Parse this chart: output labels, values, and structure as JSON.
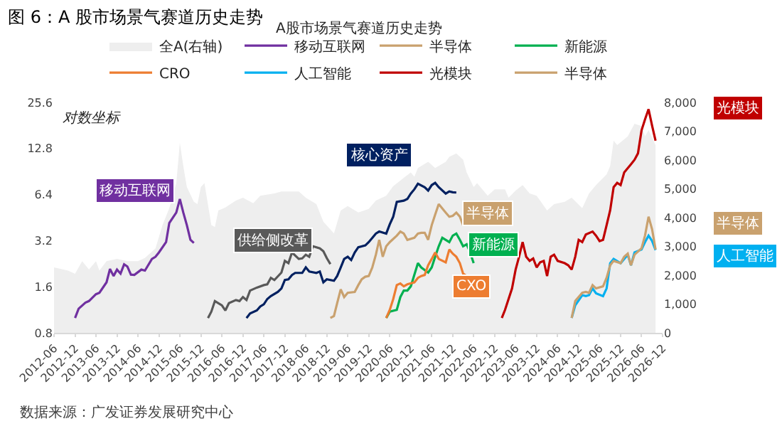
{
  "chart_data": {
    "type": "line",
    "title": "图 6：A 股市场景气赛道历史走势",
    "subtitle": "A股市场景气赛道历史走势",
    "annotations": [
      "对数坐标",
      "移动互联网",
      "供给侧改革",
      "核心资产",
      "半导体",
      "新能源",
      "CXO",
      "光模块",
      "半导体",
      "人工智能",
      "数据来源：广发证券发展研究中心"
    ],
    "legend": "top",
    "log": "y",
    "xlim": [
      "2012-06",
      "2026-12"
    ],
    "xticks": [
      "2012-06",
      "2012-12",
      "2013-06",
      "2013-12",
      "2014-06",
      "2014-12",
      "2015-06",
      "2015-12",
      "2016-06",
      "2016-12",
      "2017-06",
      "2017-12",
      "2018-06",
      "2018-12",
      "2019-06",
      "2019-12",
      "2020-06",
      "2020-12",
      "2021-06",
      "2021-12",
      "2022-06",
      "2022-12",
      "2023-06",
      "2023-12",
      "2024-06",
      "2024-12",
      "2025-06",
      "2025-12",
      "2026-06",
      "2026-12"
    ],
    "ylim": [
      0.8,
      25.6
    ],
    "yticks": [
      0.8,
      1.6,
      3.2,
      6.4,
      12.8,
      25.6
    ],
    "y2lim": [
      0,
      8000
    ],
    "y2ticks": [
      0,
      {
        "value": 1000,
        "label": "1,000"
      },
      {
        "value": 2000,
        "label": "2,000"
      },
      {
        "value": 3000,
        "label": "3,000"
      },
      {
        "value": 4000,
        "label": "4,000"
      },
      {
        "value": 5000,
        "label": "5,000"
      },
      {
        "value": 6000,
        "label": "6,000"
      },
      {
        "value": 7000,
        "label": "7,000"
      },
      {
        "value": 8000,
        "label": "8,000"
      }
    ],
    "series": [
      {
        "name": "全A(右轴)",
        "type": "area",
        "axis": "y2",
        "color": "#eeeeee",
        "x": [
          "2012-06",
          "2012-10",
          "2012-12",
          "2013-02",
          "2013-04",
          "2013-06",
          "2013-07",
          "2013-09",
          "2013-12",
          "2014-03",
          "2014-06",
          "2014-08",
          "2014-11",
          "2015-01",
          "2015-03",
          "2015-05",
          "2015-06",
          "2015-07",
          "2015-08",
          "2015-10",
          "2015-11",
          "2015-12",
          "2016-01",
          "2016-03",
          "2016-04",
          "2016-05",
          "2016-07",
          "2016-10",
          "2016-12",
          "2017-03",
          "2017-05",
          "2017-09",
          "2017-11",
          "2018-01",
          "2018-04",
          "2018-06",
          "2018-09",
          "2018-11",
          "2019-02",
          "2019-04",
          "2019-06",
          "2019-09",
          "2019-12",
          "2020-02",
          "2020-05",
          "2020-07",
          "2020-10",
          "2020-12",
          "2021-01",
          "2021-02",
          "2021-05",
          "2021-07",
          "2021-10",
          "2021-11",
          "2022-01",
          "2022-03",
          "2022-04",
          "2022-06",
          "2022-07",
          "2022-10",
          "2022-12",
          "2023-03",
          "2023-04",
          "2023-06",
          "2023-08",
          "2023-10",
          "2023-12",
          "2024-03",
          "2024-05",
          "2024-08",
          "2024-10",
          "2025-01",
          "2025-03",
          "2025-05",
          "2025-08",
          "2025-09",
          "2025-10",
          "2025-11",
          "2026-02",
          "2026-04",
          "2026-06",
          "2026-07",
          "2026-08",
          "2026-10"
        ],
        "values": [
          2270,
          2160,
          2050,
          2490,
          2200,
          2490,
          2160,
          2490,
          2570,
          2490,
          2490,
          2600,
          2930,
          3740,
          4330,
          5200,
          6600,
          5790,
          5060,
          4550,
          4470,
          5060,
          5200,
          3740,
          3670,
          4250,
          4350,
          4590,
          4690,
          4500,
          4760,
          4840,
          4910,
          4910,
          4910,
          4690,
          4470,
          3860,
          3450,
          4250,
          4400,
          4180,
          4300,
          4590,
          4760,
          5090,
          5380,
          5570,
          5420,
          5720,
          5940,
          5720,
          5940,
          6110,
          6230,
          6010,
          5570,
          5060,
          5200,
          4760,
          4980,
          4980,
          4690,
          4940,
          5130,
          4840,
          4760,
          4250,
          4470,
          4550,
          4690,
          4330,
          4840,
          5130,
          5500,
          5790,
          6670,
          6520,
          6820,
          7260,
          7180,
          6820,
          7040,
          6520
        ]
      },
      {
        "name": "移动互联网",
        "color": "#7030a0",
        "x": [
          "2012-12",
          "2013-01",
          "2013-03",
          "2013-04",
          "2013-06",
          "2013-07",
          "2013-09",
          "2013-10",
          "2013-11",
          "2013-12",
          "2014-01",
          "2014-02",
          "2014-03",
          "2014-04",
          "2014-05",
          "2014-07",
          "2014-08",
          "2014-10",
          "2014-11",
          "2014-12",
          "2015-02",
          "2015-03",
          "2015-05",
          "2015-06",
          "2015-07",
          "2015-08",
          "2015-09",
          "2015-10"
        ],
        "values": [
          1.0,
          1.15,
          1.26,
          1.29,
          1.43,
          1.46,
          1.71,
          2.09,
          1.88,
          2.07,
          1.95,
          2.24,
          2.17,
          1.92,
          1.91,
          2.07,
          2.04,
          2.43,
          2.51,
          2.68,
          3.13,
          4.17,
          4.88,
          5.99,
          4.88,
          4.04,
          3.24,
          3.09
        ]
      },
      {
        "color": "#595959",
        "x": [
          "2016-02",
          "2016-03",
          "2016-04",
          "2016-06",
          "2016-07",
          "2016-08",
          "2016-10",
          "2016-11",
          "2016-12",
          "2017-01",
          "2017-02",
          "2017-04",
          "2017-06",
          "2017-07",
          "2017-08",
          "2017-09",
          "2017-11",
          "2017-12",
          "2018-01",
          "2018-02",
          "2018-04",
          "2018-05",
          "2018-06",
          "2018-07",
          "2018-08",
          "2018-10",
          "2018-11",
          "2018-12",
          "2019-01"
        ],
        "values": [
          1.0,
          1.1,
          1.29,
          1.21,
          1.12,
          1.25,
          1.31,
          1.29,
          1.37,
          1.31,
          1.51,
          1.58,
          1.64,
          1.66,
          1.83,
          1.77,
          1.98,
          2.36,
          2.28,
          2.68,
          2.43,
          2.45,
          2.59,
          2.51,
          2.94,
          2.85,
          2.73,
          2.46,
          2.25
        ]
      },
      {
        "color": "#002060",
        "x": [
          "2017-01",
          "2017-02",
          "2017-04",
          "2017-05",
          "2017-06",
          "2017-07",
          "2017-08",
          "2017-10",
          "2017-11",
          "2017-12",
          "2018-01",
          "2018-02",
          "2018-03",
          "2018-05",
          "2018-06",
          "2018-07",
          "2018-09",
          "2018-10",
          "2018-11",
          "2018-12",
          "2019-02",
          "2019-03",
          "2019-04",
          "2019-05",
          "2019-06",
          "2019-07",
          "2019-08",
          "2019-09",
          "2019-11",
          "2019-12",
          "2020-01",
          "2020-02",
          "2020-03",
          "2020-05",
          "2020-06",
          "2020-07",
          "2020-08",
          "2020-10",
          "2020-11",
          "2020-12",
          "2021-01",
          "2021-02",
          "2021-04",
          "2021-05",
          "2021-06",
          "2021-07",
          "2021-08",
          "2021-10",
          "2021-11",
          "2021-12",
          "2022-01"
        ],
        "values": [
          1.0,
          1.07,
          1.12,
          1.19,
          1.23,
          1.33,
          1.39,
          1.48,
          1.56,
          1.77,
          1.79,
          1.91,
          1.97,
          1.97,
          2.14,
          2.01,
          1.97,
          2.01,
          1.71,
          1.79,
          1.75,
          1.88,
          2.14,
          2.43,
          2.51,
          2.39,
          2.68,
          2.9,
          2.98,
          3.13,
          3.34,
          3.56,
          3.67,
          3.56,
          4.09,
          4.59,
          5.73,
          5.84,
          5.99,
          6.5,
          6.93,
          7.53,
          7.15,
          6.8,
          7.38,
          7.63,
          7.15,
          6.5,
          6.71,
          6.63,
          6.6
        ]
      },
      {
        "name": "半导体",
        "color": "#c9a16e",
        "x": [
          "2019-01",
          "2019-02",
          "2019-03",
          "2019-04",
          "2019-05",
          "2019-06",
          "2019-08",
          "2019-09",
          "2019-10",
          "2019-11",
          "2019-12",
          "2020-01",
          "2020-02",
          "2020-03",
          "2020-04",
          "2020-05",
          "2020-06",
          "2020-08",
          "2020-09",
          "2020-10",
          "2020-11",
          "2021-01",
          "2021-02",
          "2021-03",
          "2021-04",
          "2021-05",
          "2021-06",
          "2021-07",
          "2021-08",
          "2021-10",
          "2021-11",
          "2021-12",
          "2022-01",
          "2022-02",
          "2022-03"
        ],
        "values": [
          1.0,
          1.03,
          1.25,
          1.54,
          1.37,
          1.46,
          1.48,
          1.64,
          1.79,
          1.86,
          1.88,
          2.14,
          2.59,
          3.24,
          2.51,
          2.94,
          3.13,
          3.45,
          3.67,
          3.56,
          3.24,
          3.34,
          3.56,
          3.6,
          3.6,
          3.24,
          4.04,
          4.74,
          5.55,
          4.88,
          4.59,
          4.65,
          4.88,
          4.59,
          4.04
        ]
      },
      {
        "name": "新能源",
        "color": "#00b050",
        "x": [
          "2020-05",
          "2020-06",
          "2020-08",
          "2020-09",
          "2020-10",
          "2020-11",
          "2020-12",
          "2021-02",
          "2021-03",
          "2021-05",
          "2021-06",
          "2021-07",
          "2021-08",
          "2021-09",
          "2021-11",
          "2021-12",
          "2022-01",
          "2022-02",
          "2022-03",
          "2022-04",
          "2022-05",
          "2022-06"
        ],
        "values": [
          1.0,
          1.1,
          1.13,
          1.37,
          1.51,
          1.51,
          1.61,
          2.28,
          2.14,
          1.98,
          2.14,
          2.51,
          2.94,
          3.34,
          3.13,
          3.45,
          3.56,
          3.24,
          2.94,
          3.03,
          2.68,
          2.28
        ]
      },
      {
        "name": "CRO",
        "color": "#ed7d31",
        "x": [
          "2020-05",
          "2020-06",
          "2020-07",
          "2020-08",
          "2020-09",
          "2020-10",
          "2020-11",
          "2021-01",
          "2021-02",
          "2021-03",
          "2021-04",
          "2021-05",
          "2021-06",
          "2021-07",
          "2021-08",
          "2021-10",
          "2021-11",
          "2021-12",
          "2022-01",
          "2022-02",
          "2022-03",
          "2022-04"
        ],
        "values": [
          1.0,
          1.13,
          1.33,
          1.64,
          1.68,
          1.61,
          1.66,
          1.71,
          1.83,
          1.88,
          1.91,
          2.21,
          2.43,
          2.68,
          2.43,
          2.31,
          2.8,
          2.63,
          2.51,
          2.28,
          1.95,
          1.88
        ]
      },
      {
        "name": "人工智能",
        "color": "#00b0f0",
        "x": [
          "2024-10",
          "2024-11",
          "2025-01",
          "2025-02",
          "2025-03",
          "2025-04",
          "2025-05",
          "2025-07",
          "2025-08",
          "2025-09",
          "2025-10",
          "2025-12",
          "2026-01",
          "2026-02",
          "2026-03",
          "2026-04",
          "2026-06",
          "2026-07",
          "2026-08",
          "2026-09",
          "2026-10"
        ],
        "values": [
          1.0,
          1.21,
          1.41,
          1.39,
          1.41,
          1.56,
          1.45,
          1.39,
          1.56,
          2.28,
          2.43,
          2.28,
          2.43,
          2.59,
          2.21,
          2.68,
          2.8,
          3.13,
          3.45,
          3.18,
          2.78
        ]
      },
      {
        "name": "光模块",
        "color": "#c00000",
        "x": [
          "2023-02",
          "2023-03",
          "2023-05",
          "2023-06",
          "2023-07",
          "2023-08",
          "2023-09",
          "2023-10",
          "2023-11",
          "2023-12",
          "2024-01",
          "2024-02",
          "2024-03",
          "2024-04",
          "2024-05",
          "2024-06",
          "2024-08",
          "2024-09",
          "2024-10",
          "2024-11",
          "2024-12",
          "2025-01",
          "2025-02",
          "2025-04",
          "2025-05",
          "2025-06",
          "2025-07",
          "2025-08",
          "2025-09",
          "2025-10",
          "2025-11",
          "2025-12",
          "2026-01",
          "2026-03",
          "2026-04",
          "2026-05",
          "2026-06",
          "2026-07",
          "2026-08",
          "2026-09",
          "2026-10"
        ],
        "values": [
          1.0,
          1.13,
          1.56,
          2.07,
          2.51,
          3.13,
          2.51,
          2.36,
          2.45,
          2.14,
          2.31,
          2.36,
          1.88,
          2.51,
          2.59,
          2.36,
          2.28,
          2.21,
          2.07,
          2.51,
          3.24,
          3.13,
          3.51,
          3.67,
          3.45,
          3.18,
          3.24,
          4.04,
          5.05,
          7.15,
          7.63,
          7.38,
          8.93,
          10.1,
          10.8,
          11.9,
          16.8,
          19.8,
          23.1,
          18.0,
          14.4
        ]
      },
      {
        "name": "半导体",
        "color": "#c9a16e",
        "x": [
          "2024-10",
          "2024-11",
          "2025-01",
          "2025-02",
          "2025-03",
          "2025-04",
          "2025-05",
          "2025-07",
          "2025-08",
          "2025-09",
          "2025-10",
          "2025-12",
          "2026-01",
          "2026-02",
          "2026-03",
          "2026-04",
          "2026-06",
          "2026-07",
          "2026-08",
          "2026-09",
          "2026-10"
        ],
        "values": [
          1.0,
          1.29,
          1.46,
          1.48,
          1.46,
          1.64,
          1.56,
          1.61,
          1.83,
          2.21,
          2.36,
          2.28,
          2.51,
          2.63,
          2.21,
          2.59,
          2.85,
          3.45,
          4.59,
          3.79,
          2.8
        ]
      }
    ]
  }
}
